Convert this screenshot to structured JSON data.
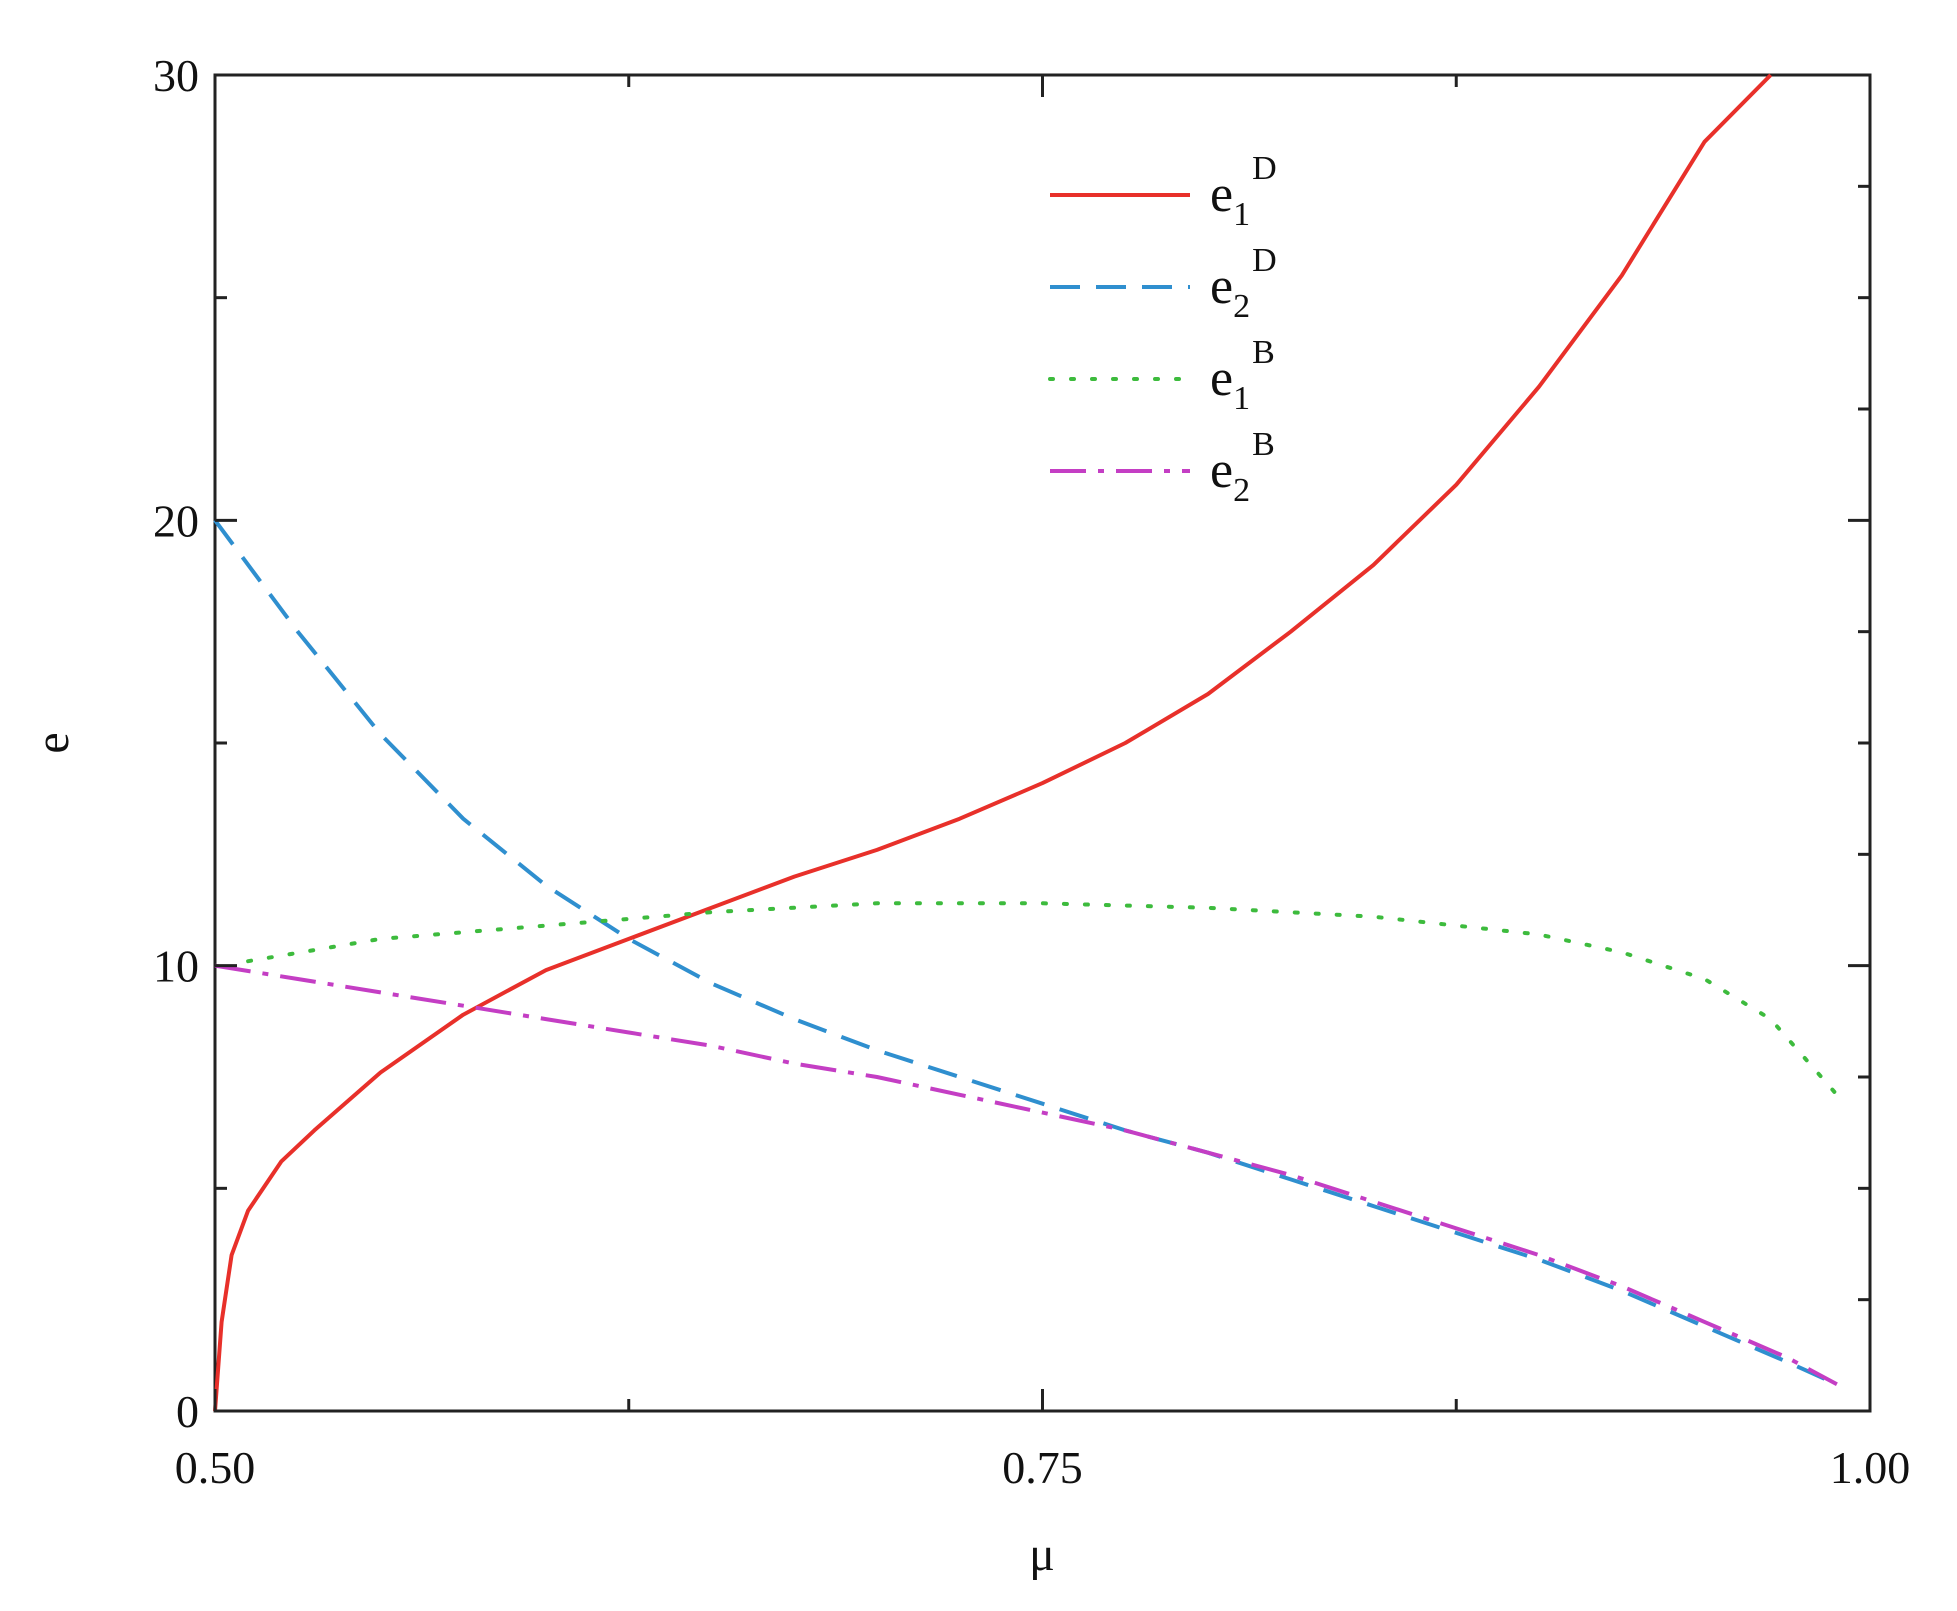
{
  "chart_data": {
    "type": "line",
    "title": "",
    "xlabel": "μ",
    "ylabel": "e",
    "xlim": [
      0.5,
      1.0
    ],
    "ylim": [
      0,
      30
    ],
    "x_ticks": [
      "0.50",
      "0.75",
      "1.00"
    ],
    "y_ticks": [
      "0",
      "10",
      "20",
      "30"
    ],
    "grid": false,
    "legend_position": "top-center",
    "series": [
      {
        "name": "e1D",
        "label_main": "e",
        "label_sub": "1",
        "label_sup": "D",
        "color": "#e8302a",
        "dash": "solid",
        "x": [
          0.5,
          0.502,
          0.505,
          0.51,
          0.52,
          0.53,
          0.55,
          0.575,
          0.6,
          0.625,
          0.65,
          0.675,
          0.7,
          0.725,
          0.75,
          0.775,
          0.8,
          0.825,
          0.85,
          0.875,
          0.9,
          0.925,
          0.95,
          0.97
        ],
        "y": [
          0.0,
          2.0,
          3.5,
          4.5,
          5.6,
          6.3,
          7.6,
          8.9,
          9.9,
          10.6,
          11.3,
          12.0,
          12.6,
          13.3,
          14.1,
          15.0,
          16.1,
          17.5,
          19.0,
          20.8,
          23.0,
          25.5,
          28.5,
          30.0
        ]
      },
      {
        "name": "e2D",
        "label_main": "e",
        "label_sub": "2",
        "label_sup": "D",
        "color": "#2f8fcf",
        "dash": "long-dash",
        "x": [
          0.5,
          0.525,
          0.55,
          0.575,
          0.6,
          0.625,
          0.65,
          0.675,
          0.7,
          0.725,
          0.75,
          0.775,
          0.8,
          0.825,
          0.85,
          0.875,
          0.9,
          0.925,
          0.95,
          0.975,
          0.99
        ],
        "y": [
          20.0,
          17.5,
          15.2,
          13.3,
          11.8,
          10.6,
          9.6,
          8.8,
          8.1,
          7.5,
          6.9,
          6.3,
          5.8,
          5.2,
          4.6,
          4.0,
          3.4,
          2.7,
          1.9,
          1.1,
          0.6
        ]
      },
      {
        "name": "e1B",
        "label_main": "e",
        "label_sub": "1",
        "label_sup": "B",
        "color": "#3dbb3d",
        "dash": "dotted",
        "x": [
          0.51,
          0.55,
          0.6,
          0.65,
          0.7,
          0.75,
          0.8,
          0.85,
          0.9,
          0.925,
          0.95,
          0.97,
          0.99
        ],
        "y": [
          10.1,
          10.6,
          10.9,
          11.2,
          11.4,
          11.4,
          11.3,
          11.1,
          10.7,
          10.3,
          9.7,
          8.8,
          7.1
        ]
      },
      {
        "name": "e2B",
        "label_main": "e",
        "label_sub": "2",
        "label_sup": "B",
        "color": "#c43ec4",
        "dash": "dash-dot",
        "x": [
          0.5,
          0.525,
          0.55,
          0.575,
          0.6,
          0.625,
          0.65,
          0.675,
          0.7,
          0.725,
          0.75,
          0.775,
          0.8,
          0.825,
          0.85,
          0.875,
          0.9,
          0.925,
          0.95,
          0.975,
          0.99
        ],
        "y": [
          10.0,
          9.7,
          9.4,
          9.1,
          8.8,
          8.5,
          8.2,
          7.8,
          7.5,
          7.1,
          6.7,
          6.3,
          5.8,
          5.3,
          4.7,
          4.1,
          3.5,
          2.8,
          2.0,
          1.2,
          0.6
        ]
      }
    ]
  }
}
